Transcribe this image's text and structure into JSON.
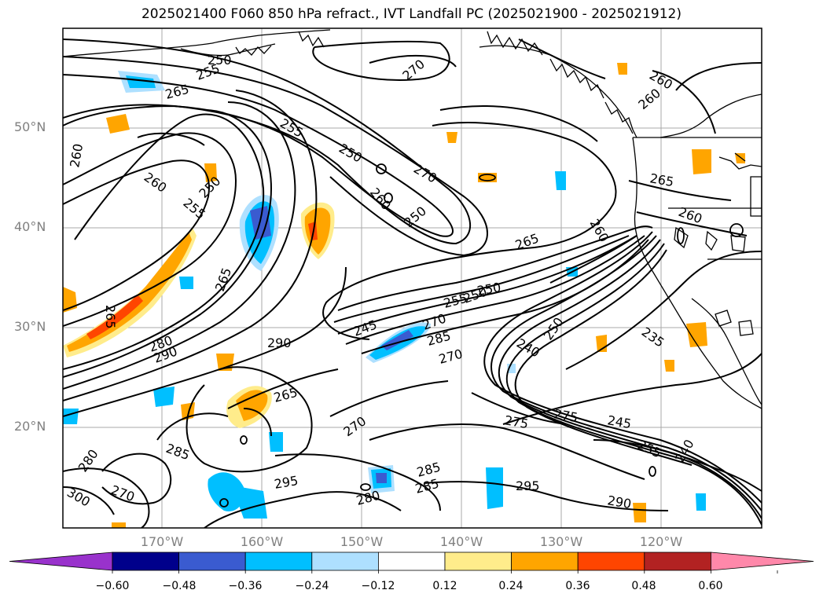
{
  "title": "2025021400 F060 850 hPa refract., IVT Landfall PC (2025021900 - 2025021912)",
  "lat_labels": [
    "50°N",
    "40°N",
    "30°N",
    "20°N"
  ],
  "lon_labels": [
    "170°W",
    "160°W",
    "150°W",
    "140°W",
    "130°W",
    "120°W"
  ],
  "colorbar": {
    "ticks": [
      "−0.60",
      "−0.48",
      "−0.36",
      "−0.24",
      "−0.12",
      "0.12",
      "0.24",
      "0.36",
      "0.48",
      "0.60"
    ],
    "colors": [
      "#9932cc",
      "#00008b",
      "#3a5bd0",
      "#00bfff",
      "#aee0ff",
      "#ffffff",
      "#ffec8b",
      "#ffa500",
      "#ff4500",
      "#b22222",
      "#ff88aa"
    ]
  },
  "contour_labels": [
    "250",
    "255",
    "265",
    "260",
    "260",
    "270",
    "260",
    "255",
    "250",
    "250",
    "270",
    "260",
    "250",
    "255",
    "260",
    "265",
    "260",
    "265",
    "265",
    "260",
    "250",
    "265",
    "280",
    "290",
    "290",
    "245",
    "255",
    "250",
    "270",
    "285",
    "270",
    "240",
    "250",
    "235",
    "265",
    "270",
    "285",
    "280",
    "295",
    "285",
    "285",
    "280",
    "275",
    "295",
    "275",
    "245",
    "255",
    "240",
    "290",
    "300",
    "270"
  ],
  "colors": {
    "positive_fill": "#ffa500",
    "negative_fill": "#00bfff",
    "contour": "#000000",
    "grid": "#a9a9a9",
    "lat_lon_label": "#808080"
  }
}
